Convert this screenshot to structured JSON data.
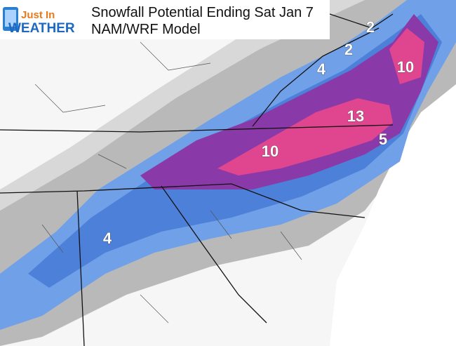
{
  "header": {
    "logo_top": "Just In",
    "logo_bottom": "WEATHER",
    "title": "Snowfall Potential Ending Sat Jan 7",
    "subtitle": "NAM/WRF Model"
  },
  "map": {
    "labels": [
      "2",
      "2",
      "4",
      "10",
      "13",
      "10",
      "5",
      "4"
    ]
  }
}
